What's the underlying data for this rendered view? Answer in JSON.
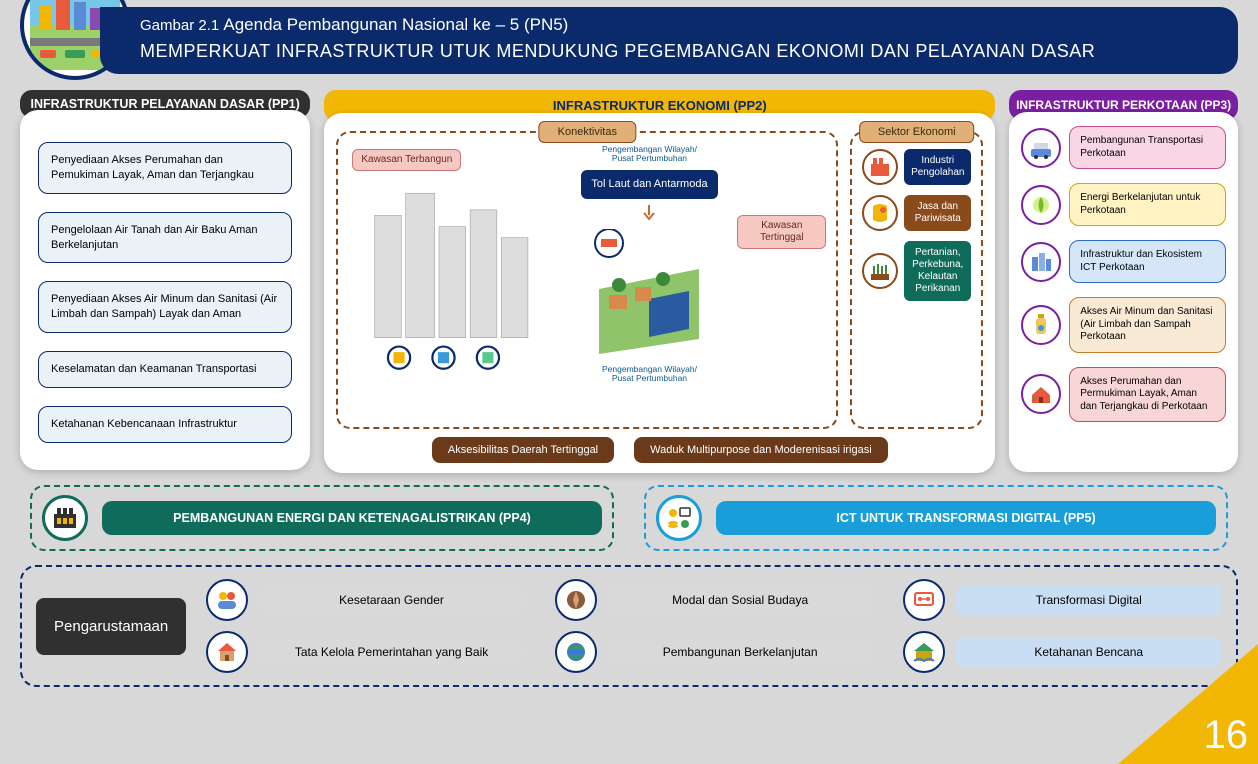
{
  "page_number": "16",
  "header": {
    "caption_prefix": "Gambar 2.1",
    "caption": "Agenda Pembangunan Nasional ke – 5 (PN5)",
    "title": "MEMPERKUAT INFRASTRUKTUR UTUK MENDUKUNG PEGEMBANGAN EKONOMI DAN PELAYANAN DASAR"
  },
  "colors": {
    "navy": "#0a2a6b",
    "gold": "#f2b705",
    "dark": "#303030",
    "purple": "#7b1fa2",
    "teal": "#0f6b5a",
    "sky": "#1a9ed9",
    "brown": "#6a3a1a",
    "brown_light": "#e0b078",
    "pp1_item_bg": "#eaf1f7",
    "pp1_item_border": "#0a2a6b"
  },
  "pp1": {
    "title": "INFRASTRUKTUR PELAYANAN DASAR (PP1)",
    "items": [
      "Penyediaan Akses Perumahan dan Pemukiman Layak, Aman dan Terjangkau",
      "Pengelolaan Air Tanah dan Air Baku Aman Berkelanjutan",
      "Penyediaan Akses Air Minum dan Sanitasi (Air Limbah dan Sampah) Layak dan Aman",
      "Keselamatan dan Keamanan Transportasi",
      "Ketahanan Kebencanaan Infrastruktur"
    ]
  },
  "pp2": {
    "title": "INFRASTRUKTUR EKONOMI (PP2)",
    "konektivitas": {
      "title": "Konektivitas",
      "chips": {
        "kawasan_terbangun": "Kawasan Terbangun",
        "wilayah_top": "Pengembangan Wilayah/\nPusat Pertumbuhan",
        "tol_laut": "Tol Laut  dan Antarmoda",
        "kawasan_tertinggal": "Kawasan Tertinggal",
        "wilayah_bottom": "Pengembangan Wilayah/\nPusat Pertumbuhan"
      }
    },
    "sektor": {
      "title": "Sektor Ekonomi",
      "items": [
        {
          "label": "Industri Pengolahan",
          "bg": "#0a2a6b"
        },
        {
          "label": "Jasa dan Pariwisata",
          "bg": "#8a4a1a"
        },
        {
          "label": "Pertanian, Perkebuna, Kelautan Perikanan",
          "bg": "#0f6b5a"
        }
      ]
    },
    "footer": [
      "Aksesibilitas Daerah Tertinggal",
      "Waduk Multipurpose dan Moderenisasi irigasi"
    ]
  },
  "pp3": {
    "title": "INFRASTRUKTUR PERKOTAAN (PP3)",
    "items": [
      {
        "label": "Pembangunan Transportasi Perkotaan",
        "bg": "#f9d6e6",
        "border": "#c94f8c"
      },
      {
        "label": "Energi Berkelanjutan untuk Perkotaan",
        "bg": "#fff3c4",
        "border": "#c9a60f"
      },
      {
        "label": "Infrastruktur dan Ekosistem ICT Perkotaan",
        "bg": "#d6e6f9",
        "border": "#2a6ac9"
      },
      {
        "label": "Akses Air Minum dan Sanitasi (Air Limbah dan Sampah Perkotaan",
        "bg": "#f9ead6",
        "border": "#c97a2f"
      },
      {
        "label": "Akses Perumahan dan Permukiman Layak, Aman dan Terjangkau di Perkotaan",
        "bg": "#f9d6d6",
        "border": "#c94f4f"
      }
    ]
  },
  "pp4": {
    "label": "PEMBANGUNAN ENERGI DAN KETENAGALISTRIKAN (PP4)"
  },
  "pp5": {
    "label": "ICT UNTUK TRANSFORMASI DIGITAL (PP5)"
  },
  "mainstream": {
    "label": "Pengarustamaan",
    "items": [
      {
        "label": "Kesetaraan Gender",
        "bg": "#d9d9d9"
      },
      {
        "label": "Modal dan Sosial Budaya",
        "bg": "#d9d9d9"
      },
      {
        "label": "Transformasi Digital",
        "bg": "#c9def2"
      },
      {
        "label": "Tata Kelola Pemerintahan yang Baik",
        "bg": "#d9d9d9"
      },
      {
        "label": "Pembangunan Berkelanjutan",
        "bg": "#d9d9d9"
      },
      {
        "label": "Ketahanan Bencana",
        "bg": "#c9def2"
      }
    ]
  }
}
